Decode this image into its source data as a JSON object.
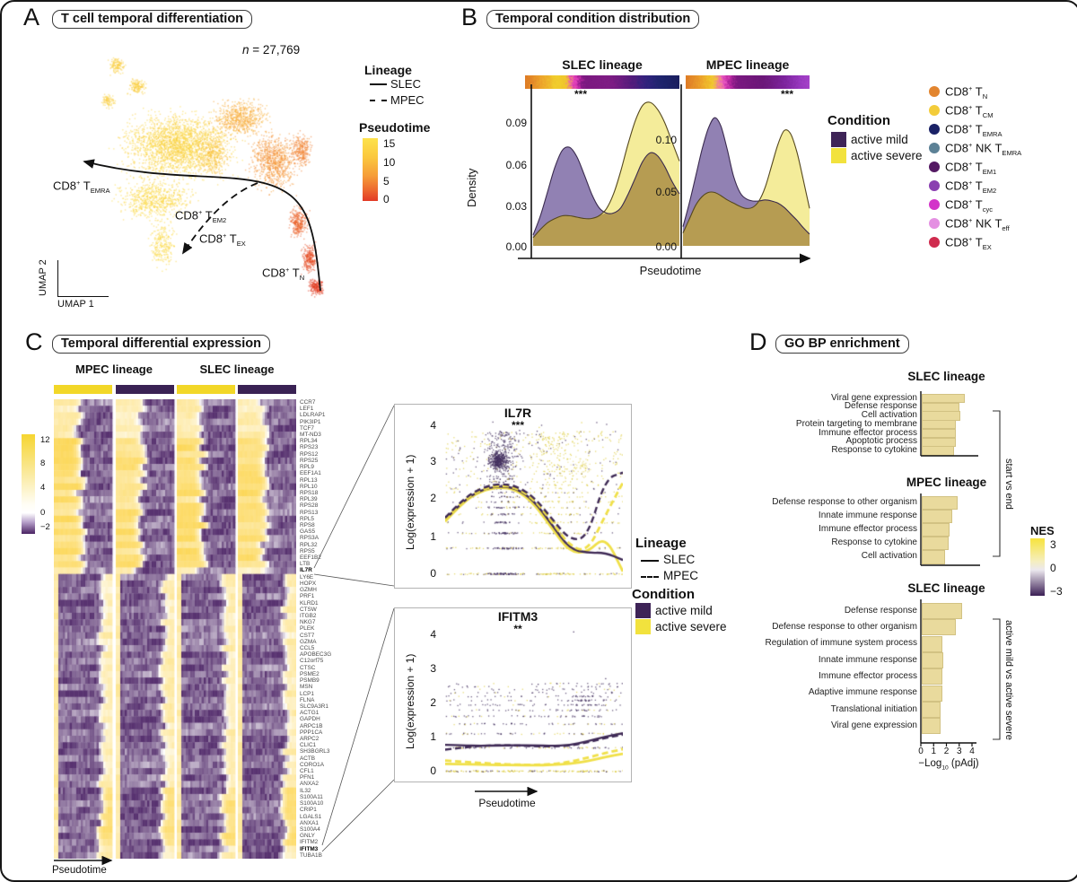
{
  "shared": {
    "lineage_legend": {
      "title": "Lineage",
      "items": [
        {
          "label": "SLEC",
          "dashed": false
        },
        {
          "label": "MPEC",
          "dashed": true
        }
      ]
    },
    "condition_legend": {
      "title": "Condition",
      "items": [
        {
          "label": "active mild",
          "color": "#3e2457"
        },
        {
          "label": "active severe",
          "color": "#f2e23d"
        }
      ]
    },
    "pseudotime_label": "Pseudotime"
  },
  "panels": {
    "A": {
      "letter": "A",
      "title": "T cell temporal differentiation",
      "n_prefix": "n",
      "n_rest": " = 27,769",
      "xlabel": "UMAP 1",
      "ylabel": "UMAP 2",
      "pseudotime_legend": {
        "title": "Pseudotime",
        "ticks": [
          "15",
          "10",
          "5",
          "0"
        ]
      },
      "cluster_labels": [
        {
          "base": "CD8",
          "sup": "+",
          "mid": " T",
          "sub": "EMRA"
        },
        {
          "base": "CD8",
          "sup": "+",
          "mid": " T",
          "sub": "EM2"
        },
        {
          "base": "CD8",
          "sup": "+",
          "mid": " T",
          "sub": "EX"
        },
        {
          "base": "CD8",
          "sup": "+",
          "mid": " T",
          "sub": "N"
        }
      ]
    },
    "B": {
      "letter": "B",
      "title": "Temporal condition distribution",
      "ylabel": "Density",
      "xlabel": "Pseudotime",
      "strips": [
        {
          "name": "SLEC",
          "stops": [
            [
              0,
              "#df7d28"
            ],
            [
              0.1,
              "#eda32e"
            ],
            [
              0.2,
              "#f2d02f"
            ],
            [
              0.27,
              "#f0c52e"
            ],
            [
              0.3,
              "#ec51c5"
            ],
            [
              0.335,
              "#d32fb0"
            ],
            [
              0.37,
              "#7d1b82"
            ],
            [
              0.55,
              "#801e86"
            ],
            [
              0.68,
              "#5a1f7e"
            ],
            [
              0.78,
              "#33257f"
            ],
            [
              0.88,
              "#20276f"
            ],
            [
              1,
              "#1d2161"
            ]
          ]
        },
        {
          "name": "MPEC",
          "stops": [
            [
              0,
              "#df7d28"
            ],
            [
              0.12,
              "#eda32e"
            ],
            [
              0.22,
              "#f2d02f"
            ],
            [
              0.3,
              "#ef5ec9"
            ],
            [
              0.34,
              "#c32ca6"
            ],
            [
              0.4,
              "#7d1b82"
            ],
            [
              0.62,
              "#6d1a7a"
            ],
            [
              0.8,
              "#7f27a0"
            ],
            [
              0.92,
              "#9a3bc0"
            ],
            [
              1,
              "#a845cb"
            ]
          ]
        }
      ],
      "celltype_legend": [
        {
          "color": "#e2852f",
          "base": "CD8",
          "sup": "+",
          "mid": " T",
          "sub": "N"
        },
        {
          "color": "#f3cc3a",
          "base": "CD8",
          "sup": "+",
          "mid": " T",
          "sub": "CM"
        },
        {
          "color": "#1a2166",
          "base": "CD8",
          "sup": "+",
          "mid": " T",
          "sub": "EMRA"
        },
        {
          "color": "#5c8196",
          "base": "CD8",
          "sup": "+",
          "mid": " NK T",
          "sub": "EMRA"
        },
        {
          "color": "#541a63",
          "base": "CD8",
          "sup": "+",
          "mid": " T",
          "sub": "EM1"
        },
        {
          "color": "#8a3fb0",
          "base": "CD8",
          "sup": "+",
          "mid": " T",
          "sub": "EM2"
        },
        {
          "color": "#d335c9",
          "base": "CD8",
          "sup": "+",
          "mid": " T",
          "sub": "cyc"
        },
        {
          "color": "#e490e2",
          "base": "CD8",
          "sup": "+",
          "mid": " NK T",
          "sub": "eff"
        },
        {
          "color": "#cf2b4e",
          "base": "CD8",
          "sup": "+",
          "mid": " T",
          "sub": "EX"
        }
      ]
    },
    "C": {
      "letter": "C",
      "title": "Temporal differential expression",
      "col_headers": [
        "MPEC lineage",
        "SLEC lineage"
      ],
      "colorbar_ticks": [
        "12",
        "8",
        "4",
        "0",
        "−2"
      ],
      "xlabel": "Pseudotime",
      "expr_ylabel": "Log(expression + 1)",
      "expr_yticks": [
        "4",
        "3",
        "2",
        "1",
        "0"
      ]
    },
    "D": {
      "letter": "D",
      "title": "GO BP enrichment",
      "xticks": [
        "0",
        "1",
        "2",
        "3",
        "4"
      ],
      "xlabel_pre": "−Log",
      "xlabel_sub": "10",
      "xlabel_post": " (pAdj)",
      "brackets": [
        "start vs end",
        "active mild vs active severe"
      ],
      "nes_legend": {
        "title": "NES",
        "ticks": [
          "3",
          "0",
          "−3"
        ]
      }
    }
  },
  "chart_data": [
    {
      "name": "umap",
      "type": "scatter",
      "title": "T cell temporal differentiation",
      "n_cells": 27769,
      "color_by": "Pseudotime",
      "color_range": [
        0,
        15
      ],
      "lineages": [
        "SLEC",
        "MPEC"
      ],
      "cluster_annotations": [
        "CD8+ T_EMRA",
        "CD8+ T_EM2",
        "CD8+ T_EX",
        "CD8+ T_N"
      ]
    },
    {
      "name": "slec_density",
      "type": "area",
      "title": "SLEC lineage",
      "significance": "***",
      "xlabel": "Pseudotime",
      "ylabel": "Density",
      "ytick_values": [
        0,
        0.03,
        0.06,
        0.09
      ],
      "ytick_labels": [
        "0.00",
        "0.03",
        "0.06",
        "0.09"
      ],
      "x": [
        0,
        0.05,
        0.1,
        0.15,
        0.2,
        0.25,
        0.3,
        0.35,
        0.4,
        0.45,
        0.5,
        0.55,
        0.6,
        0.65,
        0.7,
        0.75,
        0.8,
        0.85,
        0.9,
        0.95,
        1
      ],
      "series": [
        {
          "name": "active mild",
          "color": "#9181b3",
          "values": [
            0.008,
            0.022,
            0.04,
            0.058,
            0.07,
            0.072,
            0.065,
            0.052,
            0.038,
            0.028,
            0.024,
            0.024,
            0.028,
            0.038,
            0.05,
            0.062,
            0.068,
            0.066,
            0.058,
            0.047,
            0.038
          ]
        },
        {
          "name": "active severe",
          "color": "#f4ec9a",
          "values": [
            0.006,
            0.012,
            0.017,
            0.02,
            0.022,
            0.022,
            0.021,
            0.02,
            0.02,
            0.022,
            0.027,
            0.038,
            0.055,
            0.075,
            0.092,
            0.103,
            0.105,
            0.1,
            0.09,
            0.076,
            0.062
          ]
        }
      ]
    },
    {
      "name": "mpec_density",
      "type": "area",
      "title": "MPEC lineage",
      "significance": "***",
      "xlabel": "Pseudotime",
      "ylabel": "Density",
      "ytick_values": [
        0,
        0.05,
        0.1
      ],
      "ytick_labels": [
        "0.00",
        "0.05",
        "0.10"
      ],
      "x": [
        0,
        0.05,
        0.1,
        0.15,
        0.2,
        0.25,
        0.3,
        0.35,
        0.4,
        0.45,
        0.5,
        0.55,
        0.6,
        0.65,
        0.7,
        0.75,
        0.8,
        0.85,
        0.9,
        0.95,
        1
      ],
      "series": [
        {
          "name": "active mild",
          "color": "#9181b3",
          "values": [
            0.018,
            0.04,
            0.065,
            0.09,
            0.11,
            0.12,
            0.112,
            0.09,
            0.065,
            0.05,
            0.044,
            0.042,
            0.042,
            0.043,
            0.042,
            0.04,
            0.036,
            0.03,
            0.024,
            0.017,
            0.011
          ]
        },
        {
          "name": "active severe",
          "color": "#f4ec9a",
          "values": [
            0.012,
            0.025,
            0.038,
            0.046,
            0.05,
            0.05,
            0.047,
            0.043,
            0.04,
            0.037,
            0.035,
            0.036,
            0.042,
            0.055,
            0.075,
            0.095,
            0.108,
            0.105,
            0.088,
            0.062,
            0.035
          ]
        }
      ]
    },
    {
      "name": "heatmap",
      "type": "heatmap",
      "title": "Temporal differential expression",
      "column_blocks": [
        {
          "lineage": "MPEC lineage",
          "conditions": [
            "active severe",
            "active mild"
          ]
        },
        {
          "lineage": "SLEC lineage",
          "conditions": [
            "active severe",
            "active mild"
          ]
        }
      ],
      "x": "Pseudotime",
      "value_ticks": [
        12,
        8,
        4,
        0,
        -2
      ],
      "genes": [
        "CCR7",
        "LEF1",
        "LDLRAP1",
        "PIK3IP1",
        "TCF7",
        "MT-ND3",
        "RPL34",
        "RPS23",
        "RPS12",
        "RPS25",
        "RPL9",
        "EEF1A1",
        "RPL13",
        "RPL10",
        "RPS18",
        "RPL39",
        "RPS28",
        "RPS13",
        "RPL5",
        "RPS8",
        "GAS5",
        "RPS3A",
        "RPL32",
        "RPS5",
        "EEF1B2",
        "LTB",
        "IL7R",
        "LY6E",
        "HOPX",
        "GZMH",
        "PRF1",
        "KLRD1",
        "CTSW",
        "ITGB2",
        "NKG7",
        "PLEK",
        "CST7",
        "GZMA",
        "CCL5",
        "APOBEC3G",
        "C12orf75",
        "CTSC",
        "PSME2",
        "PSMB9",
        "MSN",
        "LCP1",
        "FLNA",
        "SLC9A3R1",
        "ACTG1",
        "GAPDH",
        "ARPC1B",
        "PPP1CA",
        "ARPC2",
        "CLIC1",
        "SH3BGRL3",
        "ACTB",
        "CORO1A",
        "CFL1",
        "PFN1",
        "ANXA2",
        "IL32",
        "S100A11",
        "S100A10",
        "CRIP1",
        "LGALS1",
        "ANXA1",
        "S100A4",
        "GNLY",
        "IFITM2",
        "IFITM3",
        "TUBA1B"
      ],
      "highlight_genes": [
        "IL7R",
        "IFITM3"
      ]
    },
    {
      "name": "IL7R",
      "type": "scatter",
      "title": "IL7R",
      "significance": "***",
      "ylabel": "Log(expression + 1)",
      "ylim": [
        0,
        4
      ],
      "xlabel": "Pseudotime",
      "x": [
        0,
        0.1,
        0.2,
        0.3,
        0.4,
        0.5,
        0.6,
        0.7,
        0.8,
        0.9,
        1
      ],
      "series": [
        {
          "name": "SLEC active mild",
          "dashed": false,
          "color": "#3f2a56",
          "values": [
            1.45,
            1.95,
            2.25,
            2.36,
            2.3,
            1.96,
            1.32,
            0.66,
            0.55,
            0.56,
            0.36
          ]
        },
        {
          "name": "MPEC active mild",
          "dashed": true,
          "color": "#3f2a56",
          "values": [
            1.5,
            2.0,
            2.3,
            2.42,
            2.36,
            2.06,
            1.48,
            0.9,
            0.95,
            2.55,
            2.72
          ]
        },
        {
          "name": "SLEC active severe",
          "dashed": false,
          "color": "#f0e04a",
          "values": [
            1.4,
            1.92,
            2.22,
            2.33,
            2.26,
            1.88,
            1.22,
            0.58,
            0.55,
            1.02,
            0.05
          ]
        },
        {
          "name": "MPEC active severe",
          "dashed": true,
          "color": "#f0e04a",
          "values": [
            1.44,
            1.96,
            2.26,
            2.38,
            2.32,
            2.0,
            1.4,
            0.74,
            0.58,
            1.55,
            2.45
          ]
        }
      ]
    },
    {
      "name": "IFITM3",
      "type": "scatter",
      "title": "IFITM3",
      "significance": "**",
      "ylabel": "Log(expression + 1)",
      "ylim": [
        0,
        4
      ],
      "xlabel": "Pseudotime",
      "x": [
        0,
        0.1,
        0.2,
        0.3,
        0.4,
        0.5,
        0.6,
        0.7,
        0.8,
        0.9,
        1
      ],
      "series": [
        {
          "name": "SLEC active mild",
          "dashed": false,
          "color": "#3f2a56",
          "values": [
            0.76,
            0.74,
            0.73,
            0.74,
            0.75,
            0.74,
            0.73,
            0.75,
            0.86,
            1.0,
            1.1
          ]
        },
        {
          "name": "MPEC active mild",
          "dashed": true,
          "color": "#3f2a56",
          "values": [
            0.62,
            0.68,
            0.73,
            0.75,
            0.74,
            0.72,
            0.71,
            0.73,
            0.83,
            0.96,
            1.06
          ]
        },
        {
          "name": "SLEC active severe",
          "dashed": false,
          "color": "#f0e04a",
          "values": [
            0.2,
            0.19,
            0.18,
            0.17,
            0.17,
            0.16,
            0.17,
            0.2,
            0.28,
            0.4,
            0.5
          ]
        },
        {
          "name": "MPEC active severe",
          "dashed": true,
          "color": "#f0e04a",
          "values": [
            0.3,
            0.26,
            0.23,
            0.2,
            0.18,
            0.17,
            0.19,
            0.26,
            0.38,
            0.52,
            0.63
          ]
        }
      ]
    },
    {
      "name": "go_slec_start_end",
      "type": "bar",
      "title": "SLEC lineage",
      "group": "start vs end",
      "xlabel": "-Log10 (pAdj)",
      "xlim": [
        0,
        4
      ],
      "bar_color": "#e9da9d",
      "categories": [
        "Viral gene expression",
        "Defense response",
        "Cell activation",
        "Protein targeting to membrane",
        "Immune effector process",
        "Apoptotic process",
        "Response to cytokine"
      ],
      "values": [
        3.2,
        2.8,
        2.9,
        2.5,
        2.5,
        2.5,
        2.4
      ]
    },
    {
      "name": "go_mpec_start_end",
      "type": "bar",
      "title": "MPEC lineage",
      "group": "start vs end",
      "xlabel": "-Log10 (pAdj)",
      "xlim": [
        0,
        4
      ],
      "bar_color": "#e9da9d",
      "categories": [
        "Defense response to other organism",
        "Innate immune response",
        "Immune effector process",
        "Response to cytokine",
        "Cell activation"
      ],
      "values": [
        2.7,
        2.25,
        2.05,
        1.95,
        1.65
      ]
    },
    {
      "name": "go_slec_mild_severe",
      "type": "bar",
      "title": "SLEC lineage",
      "group": "active mild vs active severe",
      "xlabel": "-Log10 (pAdj)",
      "xlim": [
        0,
        4
      ],
      "bar_color": "#e9da9d",
      "categories": [
        "Defense response",
        "Defense response to other organism",
        "Regulation of immune system process",
        "Innate immune response",
        "Immune effector process",
        "Adaptive immune response",
        "Translational initiation",
        "Viral gene expression"
      ],
      "values": [
        3.05,
        2.5,
        1.5,
        1.55,
        1.45,
        1.45,
        1.3,
        1.35
      ]
    }
  ]
}
